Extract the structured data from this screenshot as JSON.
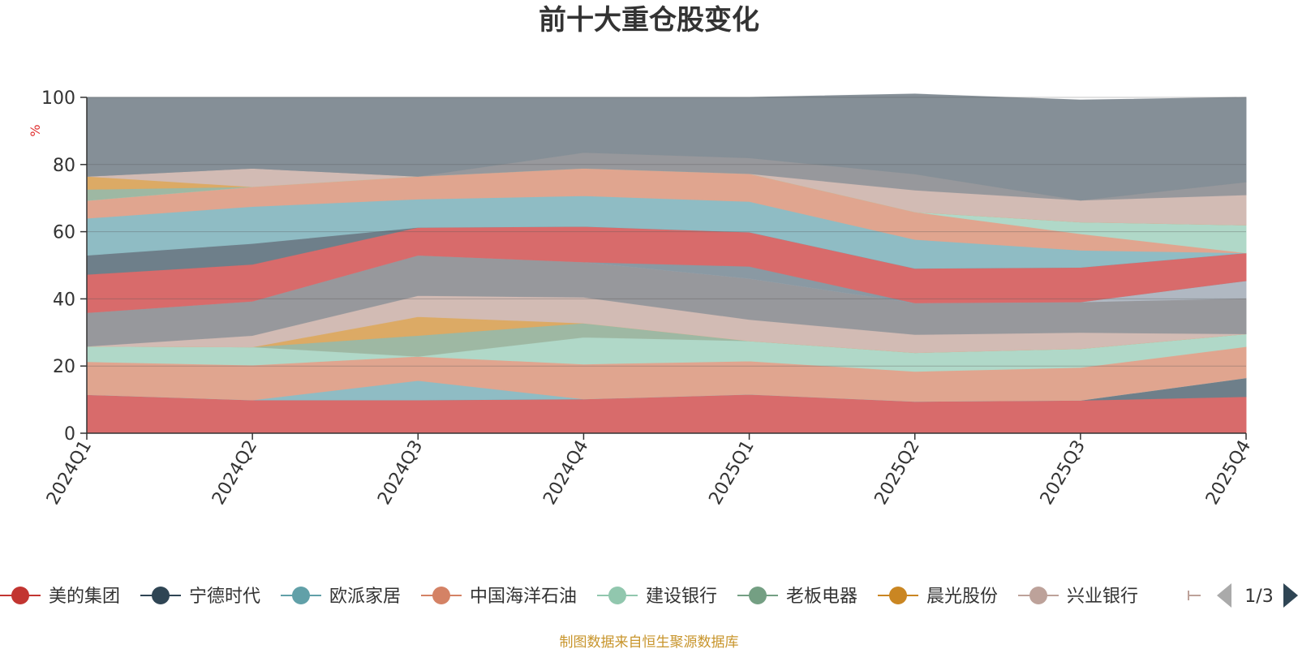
{
  "chart_data": {
    "type": "area",
    "stacked": true,
    "title": "前十大重仓股变化",
    "y_unit": "%",
    "ylim": [
      0,
      100
    ],
    "y_ticks": [
      0,
      20,
      40,
      60,
      80,
      100
    ],
    "grid": true,
    "categories": [
      "2024Q1",
      "2024Q2",
      "2024Q3",
      "2024Q4",
      "2025Q1",
      "2025Q2",
      "2025Q3",
      "2025Q4"
    ],
    "series": [
      {
        "name": "美的集团",
        "color": "#d86b6b",
        "values": [
          11.5,
          9.9,
          9.9,
          10.2,
          11.6,
          9.5,
          9.8,
          10.9
        ]
      },
      {
        "name": "宁德时代",
        "color": "#6e7f8a",
        "values": [
          0,
          0,
          0,
          0,
          0,
          0,
          0,
          5.6
        ]
      },
      {
        "name": "欧派家居",
        "color": "#8fbcc4",
        "values": [
          0,
          0,
          5.8,
          0,
          0,
          0,
          0,
          0
        ]
      },
      {
        "name": "中国海洋石油",
        "color": "#e0a58f",
        "values": [
          9.8,
          10.4,
          7.2,
          10.4,
          9.9,
          8.9,
          9.8,
          9.3
        ]
      },
      {
        "name": "建设银行",
        "color": "#b0d8c8",
        "values": [
          4.6,
          5.4,
          0,
          8.0,
          6.0,
          5.6,
          5.6,
          3.8
        ]
      },
      {
        "name": "老板电器",
        "color": "#9eb8a3",
        "values": [
          0,
          0,
          6.2,
          4.2,
          0,
          0,
          0,
          0
        ]
      },
      {
        "name": "晨光股份",
        "color": "#dcaa65",
        "values": [
          0,
          0,
          5.6,
          0,
          0,
          0,
          0,
          0
        ]
      },
      {
        "name": "兴业银行",
        "color": "#d2bbb4",
        "values": [
          0,
          3.4,
          6.3,
          7.7,
          6.4,
          5.4,
          4.8,
          0
        ]
      },
      {
        "name": "",
        "color": "#97989c",
        "values": [
          10.0,
          10.2,
          12.0,
          10.5,
          12.2,
          9.4,
          9.1,
          10.6
        ]
      },
      {
        "name": "",
        "color": "#b0b8c2",
        "values": [
          0,
          0,
          0,
          0,
          0,
          0,
          0,
          5.2
        ]
      },
      {
        "name": "",
        "color": "#8a99a3",
        "values": [
          0,
          0,
          0,
          0,
          3.6,
          0,
          0,
          0
        ]
      },
      {
        "name": "",
        "color": "#d86b6b",
        "values": [
          11.4,
          11.0,
          8.3,
          10.6,
          10.2,
          10.3,
          10.3,
          8.3
        ]
      },
      {
        "name": "",
        "color": "#6e7f8a",
        "values": [
          5.7,
          6.2,
          0,
          0,
          0,
          0,
          0,
          0
        ]
      },
      {
        "name": "",
        "color": "#8fbcc4",
        "values": [
          11.0,
          11.0,
          8.4,
          9.1,
          9.1,
          8.6,
          5.1,
          0
        ]
      },
      {
        "name": "",
        "color": "#e0a58f",
        "values": [
          5.3,
          5.9,
          6.8,
          8.2,
          8.3,
          8.2,
          4.9,
          0
        ]
      },
      {
        "name": "",
        "color": "#b0d8c8",
        "values": [
          0,
          0,
          0,
          0,
          0,
          0,
          3.5,
          8.3
        ]
      },
      {
        "name": "",
        "color": "#9eb8a3",
        "values": [
          3.3,
          0,
          0,
          0,
          0,
          0,
          0,
          0
        ]
      },
      {
        "name": "",
        "color": "#dcaa65",
        "values": [
          3.9,
          0,
          0,
          0,
          0,
          0,
          0,
          0
        ]
      },
      {
        "name": "",
        "color": "#d2bbb4",
        "values": [
          0,
          5.5,
          0,
          0,
          0,
          6.5,
          6.5,
          9.0
        ]
      },
      {
        "name": "",
        "color": "#97989c",
        "values": [
          0,
          0,
          0,
          4.7,
          4.7,
          4.8,
          0,
          3.8
        ]
      },
      {
        "name": "",
        "color": "#858f97",
        "values": [
          23.5,
          21.1,
          23.5,
          16.4,
          18.0,
          23.8,
          29.8,
          25.2
        ]
      }
    ]
  },
  "legend": {
    "items": [
      {
        "label": "美的集团",
        "color": "#c23531"
      },
      {
        "label": "宁德时代",
        "color": "#2f4554"
      },
      {
        "label": "欧派家居",
        "color": "#61a0a8"
      },
      {
        "label": "中国海洋石油",
        "color": "#d48265"
      },
      {
        "label": "建设银行",
        "color": "#91c7ae"
      },
      {
        "label": "老板电器",
        "color": "#749f83"
      },
      {
        "label": "晨光股份",
        "color": "#ca8622"
      },
      {
        "label": "兴业银行",
        "color": "#bda29a"
      }
    ],
    "page": "1/3"
  },
  "source_note": "制图数据来自恒生聚源数据库"
}
